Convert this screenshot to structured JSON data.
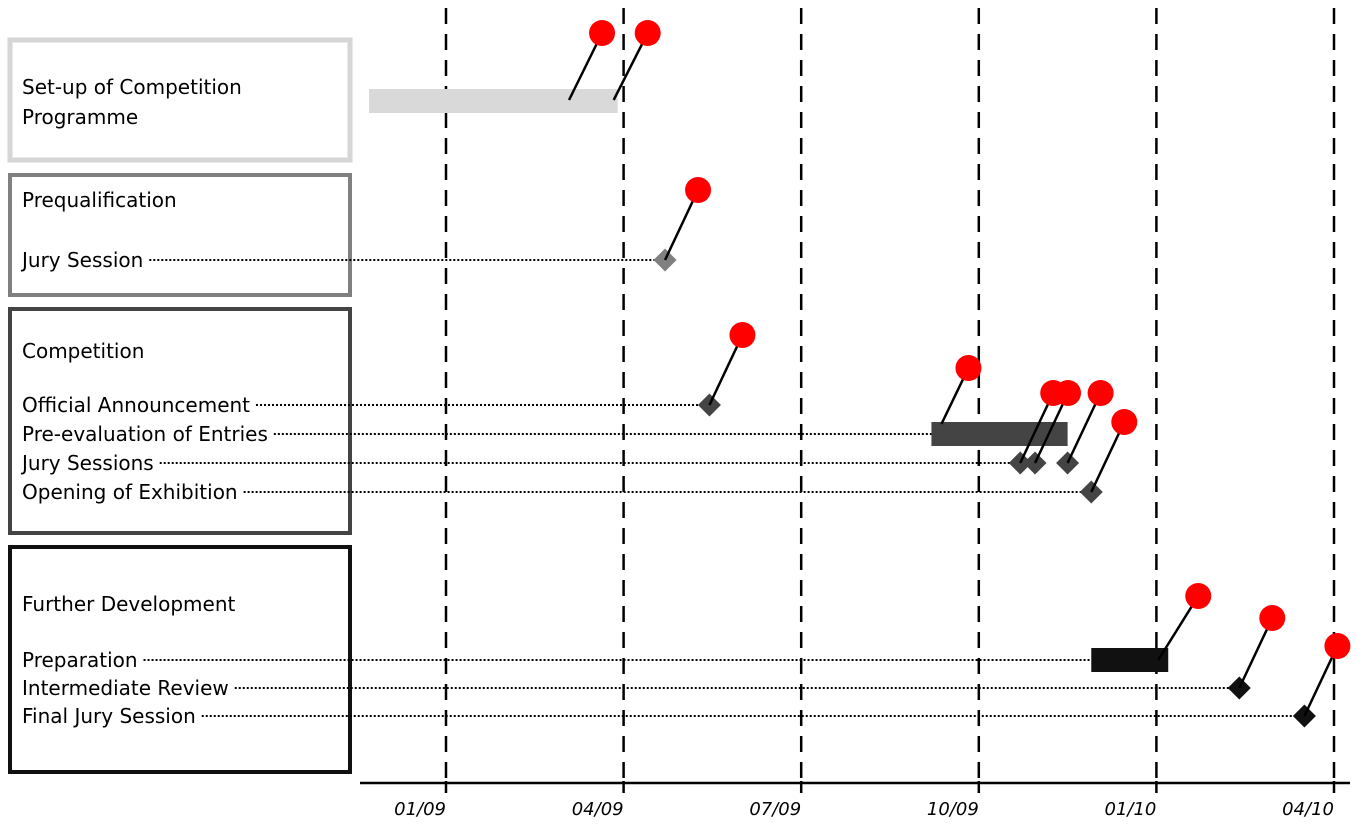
{
  "chart_data": {
    "type": "gantt",
    "x_axis": {
      "ticks": [
        "01/09",
        "04/09",
        "07/09",
        "10/09",
        "01/10",
        "04/10"
      ],
      "gridlines": "dashed-vertical"
    },
    "groups": [
      {
        "id": "setup",
        "title": "Set-up of Competition Programme",
        "title_lines": [
          "Set-up of Competition",
          "Programme"
        ],
        "frame_color": "#d6d6d6",
        "fill_color": "#d9d9d9",
        "rows": [
          {
            "label": "",
            "type": "bar",
            "start": -1.3,
            "end": 2.9
          }
        ]
      },
      {
        "id": "prequal",
        "title": "Prequalification",
        "title_lines": [
          "Prequalification"
        ],
        "frame_color": "#808080",
        "fill_color": "#808080",
        "rows": [
          {
            "label": "Jury Session",
            "type": "milestone",
            "date": 3.7
          }
        ]
      },
      {
        "id": "competition",
        "title": "Competition",
        "title_lines": [
          "Competition"
        ],
        "frame_color": "#444444",
        "fill_color": "#444444",
        "rows": [
          {
            "label": "Official Announcement",
            "type": "milestone",
            "date": 4.45
          },
          {
            "label": "Pre-evaluation of Entries",
            "type": "bar",
            "start": 8.2,
            "end": 10.5
          },
          {
            "label": "Jury Sessions",
            "type": "milestones",
            "dates": [
              9.7,
              9.95,
              10.5
            ]
          },
          {
            "label": "Opening of Exhibition",
            "type": "milestone",
            "date": 10.9
          }
        ]
      },
      {
        "id": "further",
        "title": "Further Development",
        "title_lines": [
          "Further Development"
        ],
        "frame_color": "#111111",
        "fill_color": "#111111",
        "rows": [
          {
            "label": "Preparation",
            "type": "bar",
            "start": 10.9,
            "end": 12.2
          },
          {
            "label": "Intermediate Review",
            "type": "milestone",
            "date": 13.4
          },
          {
            "label": "Final Jury Session",
            "type": "milestone",
            "date": 14.5
          }
        ]
      }
    ],
    "markers": {
      "color": "#ff0000",
      "description": "red pin markers attached to bars and milestones"
    }
  }
}
